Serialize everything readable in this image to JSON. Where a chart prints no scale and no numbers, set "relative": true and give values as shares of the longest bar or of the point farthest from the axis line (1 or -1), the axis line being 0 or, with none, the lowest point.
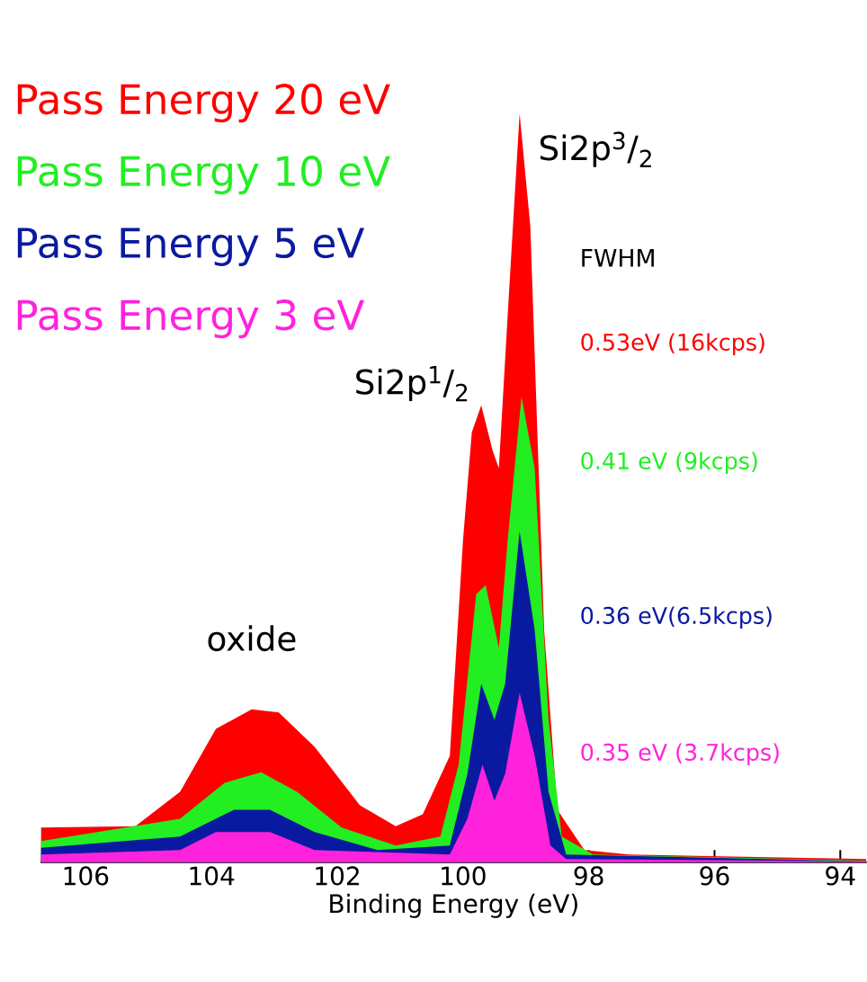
{
  "chart_data": {
    "type": "area",
    "relative": true,
    "xlabel": "Binding Energy (eV)",
    "xlim": [
      106.72,
      93.58
    ],
    "xticks": [
      106,
      104,
      102,
      100,
      98,
      96,
      94
    ],
    "legend": "top left",
    "grid": false,
    "series": [
      {
        "name": "Pass Energy 20 eV",
        "color": "#ff0000",
        "x": [
          106.71,
          105.21,
          104.5,
          103.93,
          103.36,
          102.93,
          102.36,
          101.64,
          101.07,
          100.64,
          100.21,
          100.0,
          99.86,
          99.71,
          99.53,
          99.43,
          99.29,
          99.1,
          98.93,
          98.71,
          98.5,
          98.07,
          97.36,
          93.59
        ],
        "values": [
          0.046,
          0.048,
          0.094,
          0.178,
          0.204,
          0.2,
          0.154,
          0.076,
          0.048,
          0.064,
          0.142,
          0.43,
          0.574,
          0.61,
          0.55,
          0.526,
          0.73,
          1.0,
          0.85,
          0.31,
          0.07,
          0.016,
          0.01,
          0.004
        ]
      },
      {
        "name": "Pass Energy 10 eV",
        "color": "#22ee22",
        "x": [
          106.71,
          104.5,
          103.79,
          103.21,
          102.64,
          101.93,
          101.07,
          100.36,
          100.07,
          99.79,
          99.64,
          99.43,
          99.29,
          99.07,
          98.86,
          98.64,
          98.43,
          97.93,
          93.59
        ],
        "values": [
          0.028,
          0.058,
          0.106,
          0.12,
          0.094,
          0.046,
          0.022,
          0.034,
          0.13,
          0.358,
          0.37,
          0.286,
          0.43,
          0.622,
          0.526,
          0.19,
          0.034,
          0.01,
          0.002
        ]
      },
      {
        "name": "Pass Energy 5 eV",
        "color": "#0a1aa0",
        "x": [
          106.71,
          104.5,
          103.64,
          103.07,
          102.36,
          101.36,
          100.21,
          99.93,
          99.71,
          99.5,
          99.33,
          99.1,
          98.86,
          98.64,
          98.36,
          93.59
        ],
        "values": [
          0.019,
          0.034,
          0.07,
          0.07,
          0.04,
          0.016,
          0.022,
          0.118,
          0.238,
          0.19,
          0.238,
          0.442,
          0.31,
          0.094,
          0.01,
          0.001
        ]
      },
      {
        "name": "Pass Energy 3 eV",
        "color": "#ff22dd",
        "x": [
          106.71,
          104.5,
          103.93,
          103.07,
          102.36,
          100.21,
          99.93,
          99.69,
          99.5,
          99.33,
          99.1,
          98.86,
          98.61,
          98.36,
          93.59
        ],
        "values": [
          0.01,
          0.016,
          0.04,
          0.04,
          0.016,
          0.01,
          0.058,
          0.13,
          0.082,
          0.118,
          0.226,
          0.142,
          0.022,
          0.004,
          0.001
        ]
      }
    ],
    "annotations": [
      {
        "text": "oxide",
        "x": 103.36,
        "y": 0.204
      },
      {
        "text": "Si2p$^{1}$/$_{2}$",
        "x": 99.71,
        "y": 0.61
      },
      {
        "text": "Si2p$^{3}$/$_{2}$",
        "x": 99.1,
        "y": 1.0
      },
      "FWHM",
      "0.53eV (16kcps)",
      "0.41 eV (9kcps)",
      "0.36 eV(6.5kcps)",
      "0.35 eV (3.7kcps)"
    ]
  }
}
